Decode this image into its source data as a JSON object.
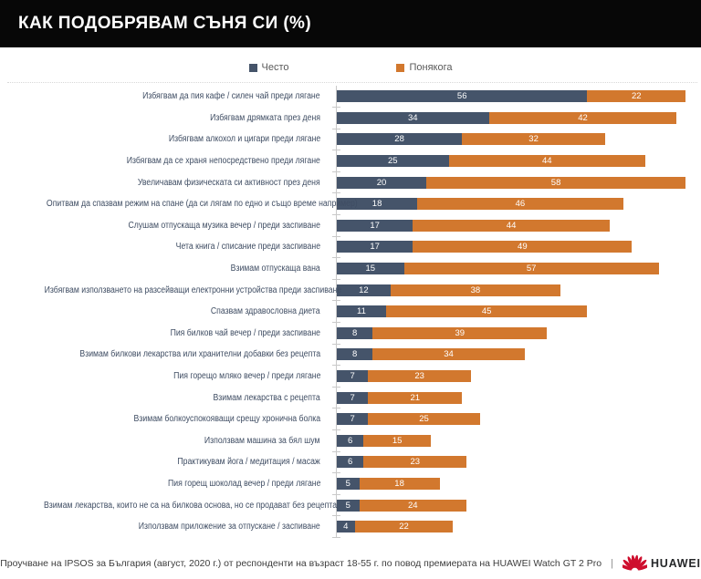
{
  "header": {
    "title": "КАК ПОДОБРЯВАМ СЪНЯ СИ (%)"
  },
  "colors": {
    "header_bg": "#070707",
    "often": "#45546A",
    "sometimes": "#D2782E",
    "axis": "#C9C9C9",
    "huawei_red": "#CE0E2D"
  },
  "chart_data": {
    "type": "bar",
    "orientation": "horizontal-stacked",
    "title": "КАК ПОДОБРЯВАМ СЪНЯ СИ (%)",
    "legend_position": "top",
    "xlim": [
      0,
      80
    ],
    "grid": false,
    "value_labels": "inside-center",
    "categories": [
      "Избягвам да пия кафе / силен чай преди лягане",
      "Избягвам дрямката през деня",
      "Избягвам алкохол и цигари преди лягане",
      "Избягвам да се храня непосредствено преди лягане",
      "Увеличавам физическата си активност през деня",
      "Опитвам да спазвам режим на спане (да си лягам по едно и също време например)",
      "Слушам отпускаща музика вечер / преди заспиване",
      "Чета книга / списание преди заспиване",
      "Взимам отпускаща вана",
      "Избягвам използването на разсейващи електронни устройства преди заспиване",
      "Спазвам здравословна диета",
      "Пия билков чай вечер / преди заспиване",
      "Взимам билкови лекарства или хранителни добавки без рецепта",
      "Пия горещо мляко вечер / преди лягане",
      "Взимам лекарства с рецепта",
      "Взимам болкоуспокояващи срещу хронична болка",
      "Използвам машина за бял шум",
      "Практикувам йога / медитация / масаж",
      "Пия горещ шоколад вечер / преди лягане",
      "Взимам лекарства, които не са на билкова основа, но се продават без рецепта",
      "Използвам приложение за отпускане / заспиване"
    ],
    "series": [
      {
        "name": "Често",
        "color": "#45546A",
        "values": [
          56,
          34,
          28,
          25,
          20,
          18,
          17,
          17,
          15,
          12,
          11,
          8,
          8,
          7,
          7,
          7,
          6,
          6,
          5,
          5,
          4
        ]
      },
      {
        "name": "Понякога",
        "color": "#D2782E",
        "values": [
          22,
          42,
          32,
          44,
          58,
          46,
          44,
          49,
          57,
          38,
          45,
          39,
          34,
          23,
          21,
          25,
          15,
          23,
          18,
          24,
          22
        ]
      }
    ]
  },
  "footer": {
    "source": "Проучване на IPSOS за България (август, 2020 г.) от респонденти на възраст 18-55 г. по повод премиерата на HUAWEI Watch GT 2 Pro",
    "separator": "|",
    "brand": "HUAWEI"
  }
}
